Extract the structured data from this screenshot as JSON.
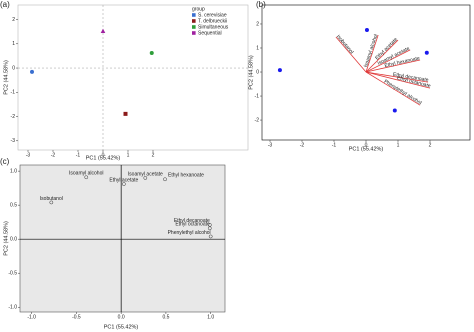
{
  "chart_data": [
    {
      "type": "scatter",
      "panel_label": "(a)",
      "x_label": "PC1 (55.42%)",
      "y_label": "PC2 (44.58%)",
      "legend_title": "group",
      "series": [
        {
          "name": "S. cerevisiae",
          "color": "#3a6fd0",
          "x": [
            -2.84
          ],
          "values": [
            -0.16
          ]
        },
        {
          "name": "T. delbrueckii",
          "color": "#8b1a1a",
          "x": [
            0.9
          ],
          "values": [
            -1.89
          ]
        },
        {
          "name": "Simultaneous",
          "color": "#2e9e3a",
          "x": [
            1.95
          ],
          "values": [
            0.62
          ]
        },
        {
          "name": "Sequential",
          "color": "#a020a0",
          "x": [
            0
          ],
          "values": [
            1.52
          ]
        }
      ],
      "xlim": [
        -3.4,
        5.8
      ],
      "ylim": [
        -3.38,
        2.6
      ],
      "xticks": [
        -3,
        -2,
        -1,
        0,
        1,
        2
      ],
      "yticks": [
        -3,
        -2,
        -1,
        0,
        1,
        2
      ],
      "zero_lines": "dashed"
    },
    {
      "type": "biplot",
      "panel_label": "(b)",
      "x_label": "PC1 (55.42%)",
      "y_label": "PC2 (44.58%)",
      "points": {
        "color": "#1a1aee",
        "x": [
          -2.69,
          0.03,
          1.9,
          0.9
        ],
        "values": [
          0.08,
          1.75,
          0.8,
          -1.6
        ]
      },
      "vectors": {
        "color": "#e03a3a",
        "names": [
          "Isobutanol",
          "Isoamyl alcohol",
          "Ethyl acetate",
          "Isoamyl acetate",
          "Ethyl hexanoate",
          "Ethyl decanoate",
          "Ethyl octanoate",
          "Phenylethyl alcohol"
        ],
        "x": [
          -0.94,
          0.38,
          1.0,
          1.38,
          1.69,
          1.94,
          2.0,
          1.69
        ],
        "values": [
          1.46,
          1.54,
          1.33,
          0.92,
          0.5,
          -0.42,
          -0.67,
          -1.38
        ]
      },
      "xlim": [
        -3.25,
        3.25
      ],
      "ylim": [
        -2.83,
        2.79
      ],
      "xticks": [
        -3,
        -2,
        -1,
        0,
        1,
        2
      ],
      "yticks": [
        -2,
        -1,
        0,
        1,
        2
      ]
    },
    {
      "type": "loading",
      "panel_label": "(c)",
      "x_label": "PC1 (55.42%)",
      "y_label": "PC2 (44.58%)",
      "names": [
        "Isobutanol",
        "Isoamyl alcohol",
        "Ethyl acetate",
        "Isoamyl acetate",
        "Ethyl hexanoate",
        "Ethyl decanoate",
        "Ethyl octanoate",
        "Phenylethyl alcohol"
      ],
      "x": [
        -0.78,
        -0.39,
        0.03,
        0.27,
        0.49,
        0.99,
        0.99,
        1.0
      ],
      "values": [
        0.54,
        0.91,
        0.81,
        0.9,
        0.88,
        0.21,
        0.16,
        0.04
      ],
      "xlim": [
        -1.13,
        1.16
      ],
      "ylim": [
        -1.07,
        1.09
      ],
      "xticks": [
        {
          "value": -1,
          "label": "-1.0"
        },
        {
          "value": -0.5,
          "label": "-0.5"
        },
        {
          "value": 0,
          "label": "0.0"
        },
        {
          "value": 0.5,
          "label": "0.5"
        },
        {
          "value": 1,
          "label": "1.0"
        }
      ],
      "yticks": [
        {
          "value": -1,
          "label": "-1.0"
        },
        {
          "value": -0.5,
          "label": "-0.5"
        },
        {
          "value": 0,
          "label": "0.0"
        },
        {
          "value": 0.5,
          "label": "0.5"
        },
        {
          "value": 1,
          "label": "1.0"
        }
      ]
    }
  ]
}
